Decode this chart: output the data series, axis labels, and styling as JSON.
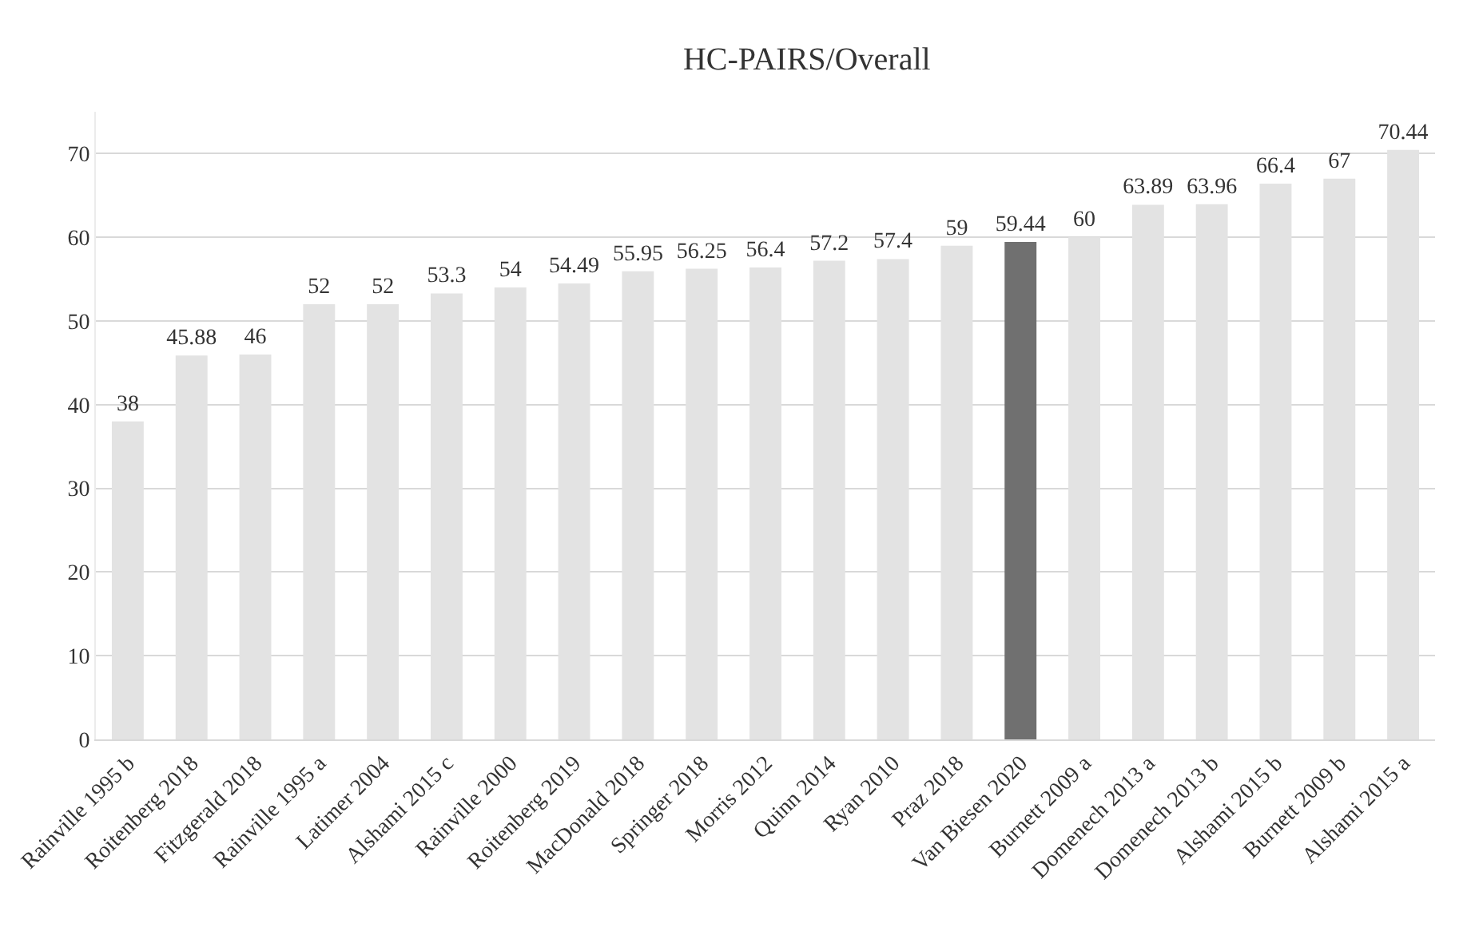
{
  "chart_data": {
    "type": "bar",
    "title": "HC-PAIRS/Overall",
    "categories": [
      "Rainville 1995 b",
      "Roitenberg 2018",
      "Fitzgerald 2018",
      "Rainville 1995 a",
      "Latimer 2004",
      "Alshami 2015 c",
      "Rainville 2000",
      "Roitenberg 2019",
      "MacDonald 2018",
      "Springer 2018",
      "Morris 2012",
      "Quinn 2014",
      "Ryan 2010",
      "Praz 2018",
      "Van Biesen 2020",
      "Burnett 2009 a",
      "Domenech 2013 a",
      "Domenech 2013 b",
      "Alshami 2015 b",
      "Burnett 2009 b",
      "Alshami 2015 a"
    ],
    "values": [
      38,
      45.88,
      46,
      52,
      52,
      53.3,
      54,
      54.49,
      55.95,
      56.25,
      56.4,
      57.2,
      57.4,
      59,
      59.44,
      60,
      63.89,
      63.96,
      66.4,
      67,
      70.44
    ],
    "colors": [
      "#e3e3e3",
      "#e3e3e3",
      "#e3e3e3",
      "#e3e3e3",
      "#e3e3e3",
      "#e3e3e3",
      "#e3e3e3",
      "#e3e3e3",
      "#e3e3e3",
      "#e3e3e3",
      "#e3e3e3",
      "#e3e3e3",
      "#e3e3e3",
      "#e3e3e3",
      "#707070",
      "#e3e3e3",
      "#e3e3e3",
      "#e3e3e3",
      "#e3e3e3",
      "#e3e3e3",
      "#e3e3e3"
    ],
    "ylim": [
      0,
      75
    ],
    "yticks": [
      0,
      10,
      20,
      30,
      40,
      50,
      60,
      70
    ],
    "grid": "y",
    "data_labels": true
  }
}
